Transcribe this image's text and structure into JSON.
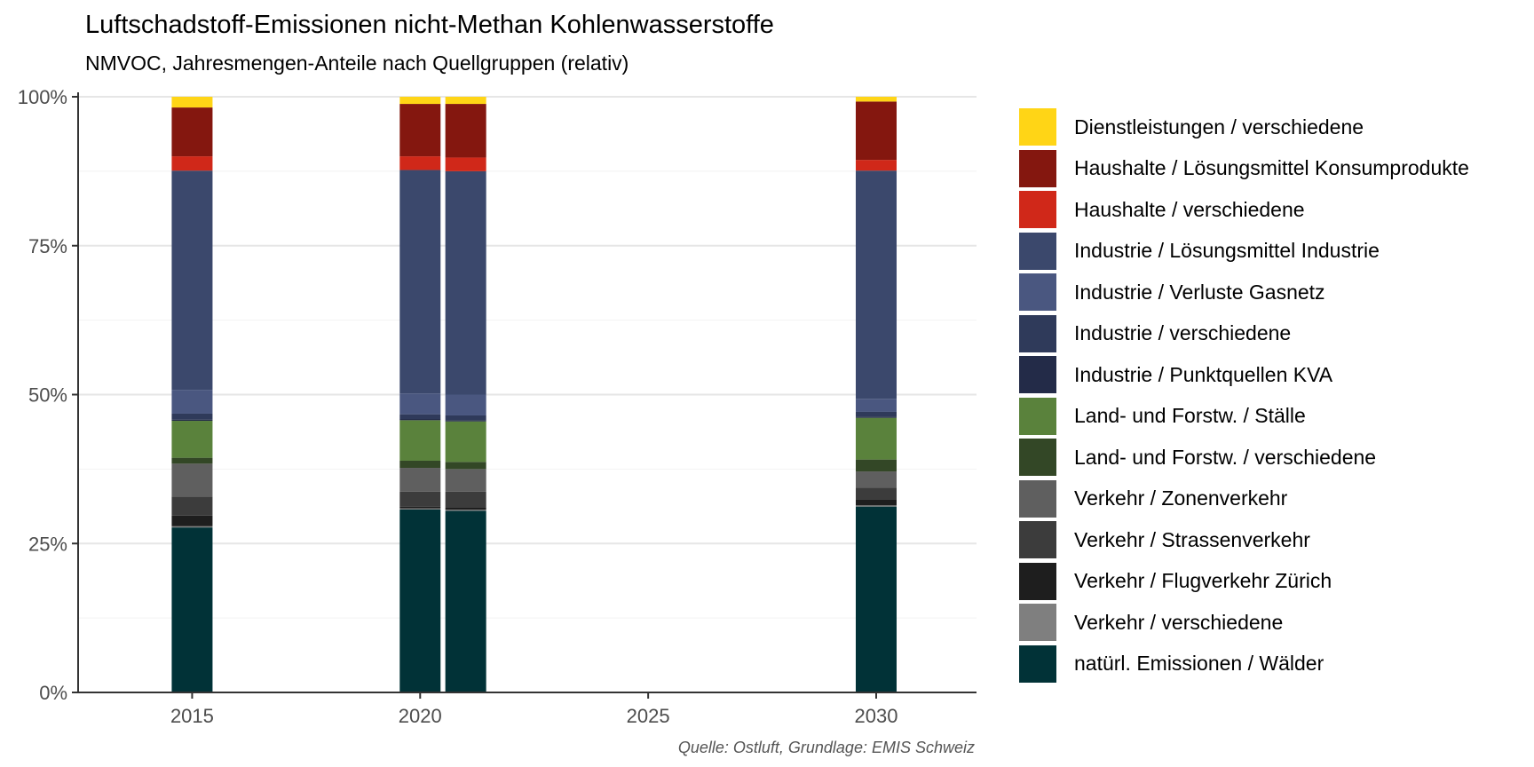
{
  "title": "Luftschadstoff-Emissionen nicht-Methan Kohlenwasserstoffe",
  "subtitle": "NMVOC, Jahresmengen-Anteile nach Quellgruppen (relativ)",
  "caption": "Quelle: Ostluft, Grundlage: EMIS Schweiz",
  "chart_data": {
    "type": "bar",
    "stacked": true,
    "x": [
      2015,
      2020,
      2021,
      2030
    ],
    "xlim": [
      2012.5,
      2032.2
    ],
    "xticks": [
      2015,
      2020,
      2025,
      2030
    ],
    "xtick_labels": [
      "2015",
      "2020",
      "2025",
      "2030"
    ],
    "ylim": [
      0,
      1
    ],
    "yticks": [
      0,
      0.25,
      0.5,
      0.75,
      1
    ],
    "ytick_labels": [
      "0%",
      "25%",
      "50%",
      "75%",
      "100%"
    ],
    "grid": true,
    "legend_position": "right",
    "series": [
      {
        "name": "natürl. Emissionen / Wälder",
        "color": "#013237",
        "values": [
          0.277,
          0.307,
          0.305,
          0.312
        ]
      },
      {
        "name": "Verkehr / verschiedene",
        "color": "#7f7f7f",
        "values": [
          0.002,
          0.002,
          0.002,
          0.002
        ]
      },
      {
        "name": "Verkehr / Flugverkehr Zürich",
        "color": "#1e1e1e",
        "values": [
          0.018,
          0.003,
          0.003,
          0.01
        ]
      },
      {
        "name": "Verkehr / Strassenverkehr",
        "color": "#3c3c3c",
        "values": [
          0.032,
          0.025,
          0.027,
          0.02
        ]
      },
      {
        "name": "Verkehr / Zonenverkehr",
        "color": "#5f5f5f",
        "values": [
          0.055,
          0.04,
          0.038,
          0.027
        ]
      },
      {
        "name": "Land- und Forstw. / verschiedene",
        "color": "#334726",
        "values": [
          0.01,
          0.012,
          0.012,
          0.02
        ]
      },
      {
        "name": "Land- und Forstw. / Ställe",
        "color": "#5a823c",
        "values": [
          0.062,
          0.068,
          0.068,
          0.07
        ]
      },
      {
        "name": "Industrie / Punktquellen KVA",
        "color": "#232b48",
        "values": [
          0.002,
          0.002,
          0.002,
          0.002
        ]
      },
      {
        "name": "Industrie / verschiedene",
        "color": "#2f3a5a",
        "values": [
          0.01,
          0.008,
          0.008,
          0.008
        ]
      },
      {
        "name": "Industrie / Verluste Gasnetz",
        "color": "#4a5780",
        "values": [
          0.04,
          0.035,
          0.035,
          0.022
        ]
      },
      {
        "name": "Industrie / Lösungsmittel Industrie",
        "color": "#3b486c",
        "values": [
          0.368,
          0.375,
          0.375,
          0.383
        ]
      },
      {
        "name": "Haushalte / verschiedene",
        "color": "#d02819",
        "values": [
          0.024,
          0.023,
          0.023,
          0.018
        ]
      },
      {
        "name": "Haushalte / Lösungsmittel Konsumprodukte",
        "color": "#84170f",
        "values": [
          0.082,
          0.088,
          0.09,
          0.098
        ]
      },
      {
        "name": "Dienstleistungen / verschiedene",
        "color": "#ffd516",
        "values": [
          0.018,
          0.012,
          0.012,
          0.008
        ]
      }
    ]
  }
}
